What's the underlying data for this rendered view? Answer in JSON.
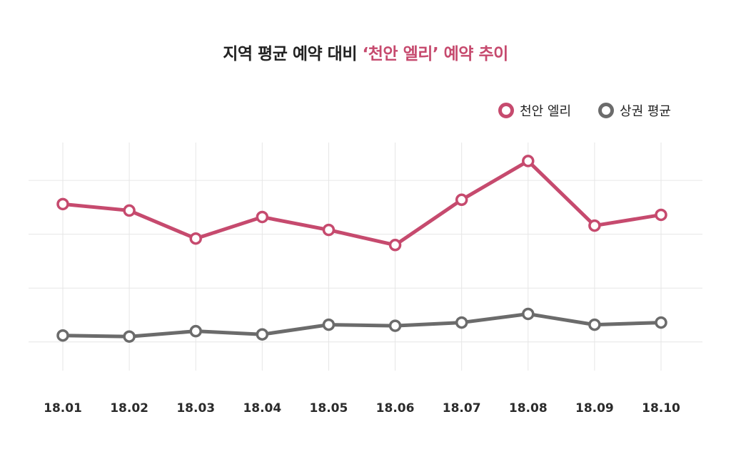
{
  "title": {
    "prefix": "지역 평균 예약 대비 ",
    "highlight": "‘천안 엘리’ 예약 추이"
  },
  "colors": {
    "primary": "#c64a6e",
    "secondary": "#6b6b6b",
    "grid": "#e6e6e6"
  },
  "chart_data": {
    "type": "line",
    "title": "지역 평균 예약 대비 ‘천안 엘리’ 예약 추이",
    "categories": [
      "18.01",
      "18.02",
      "18.03",
      "18.04",
      "18.05",
      "18.06",
      "18.07",
      "18.08",
      "18.09",
      "18.10"
    ],
    "series": [
      {
        "name": "천안 엘리",
        "color": "#c64a6e",
        "values": [
          64,
          61,
          48,
          58,
          52,
          45,
          66,
          84,
          54,
          59
        ]
      },
      {
        "name": "상권 평균",
        "color": "#6b6b6b",
        "values": [
          3,
          2.5,
          5,
          3.5,
          8,
          7.5,
          9,
          13,
          8,
          9
        ]
      }
    ],
    "ylim": [
      -10,
      80
    ],
    "xlabel": "",
    "ylabel": "",
    "grid": true,
    "legend_position": "top-right"
  }
}
